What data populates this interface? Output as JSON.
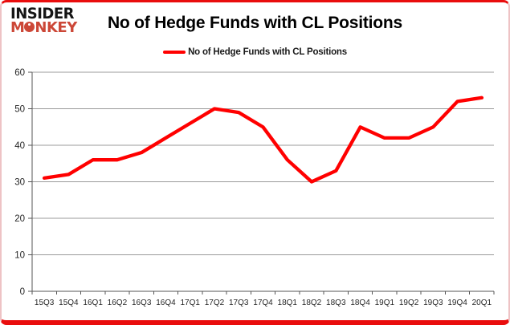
{
  "brand": {
    "line1": "INSIDER",
    "line2_prefix": "M",
    "line2_suffix": "NKEY"
  },
  "header": {
    "title": "No of Hedge Funds with CL Positions"
  },
  "legend": {
    "label": "No of Hedge Funds with CL Positions",
    "color": "#ff0000"
  },
  "chart_data": {
    "type": "line",
    "title": "No of Hedge Funds with CL Positions",
    "categories": [
      "15Q3",
      "15Q4",
      "16Q1",
      "16Q2",
      "16Q3",
      "16Q4",
      "17Q1",
      "17Q2",
      "17Q3",
      "17Q4",
      "18Q1",
      "18Q2",
      "18Q3",
      "18Q4",
      "19Q1",
      "19Q2",
      "19Q3",
      "19Q4",
      "20Q1"
    ],
    "series": [
      {
        "name": "No of Hedge Funds with CL Positions",
        "color": "#ff0000",
        "values": [
          31,
          32,
          36,
          36,
          38,
          42,
          46,
          50,
          49,
          45,
          36,
          30,
          33,
          45,
          42,
          42,
          45,
          52,
          53
        ]
      }
    ],
    "xlabel": "",
    "ylabel": "",
    "ylim": [
      0,
      60
    ],
    "yticks": [
      0,
      10,
      20,
      30,
      40,
      50,
      60
    ],
    "grid": true,
    "legend_position": "top"
  },
  "colors": {
    "line_red": "#ff0000",
    "frame_red": "#e90d0d",
    "frame_pink": "#eec3c5",
    "logo_red": "#cc4737",
    "logo_black": "#151515",
    "grid_gray": "#9b9b9b",
    "axis_gray": "#555555",
    "text_dark": "#262626"
  }
}
